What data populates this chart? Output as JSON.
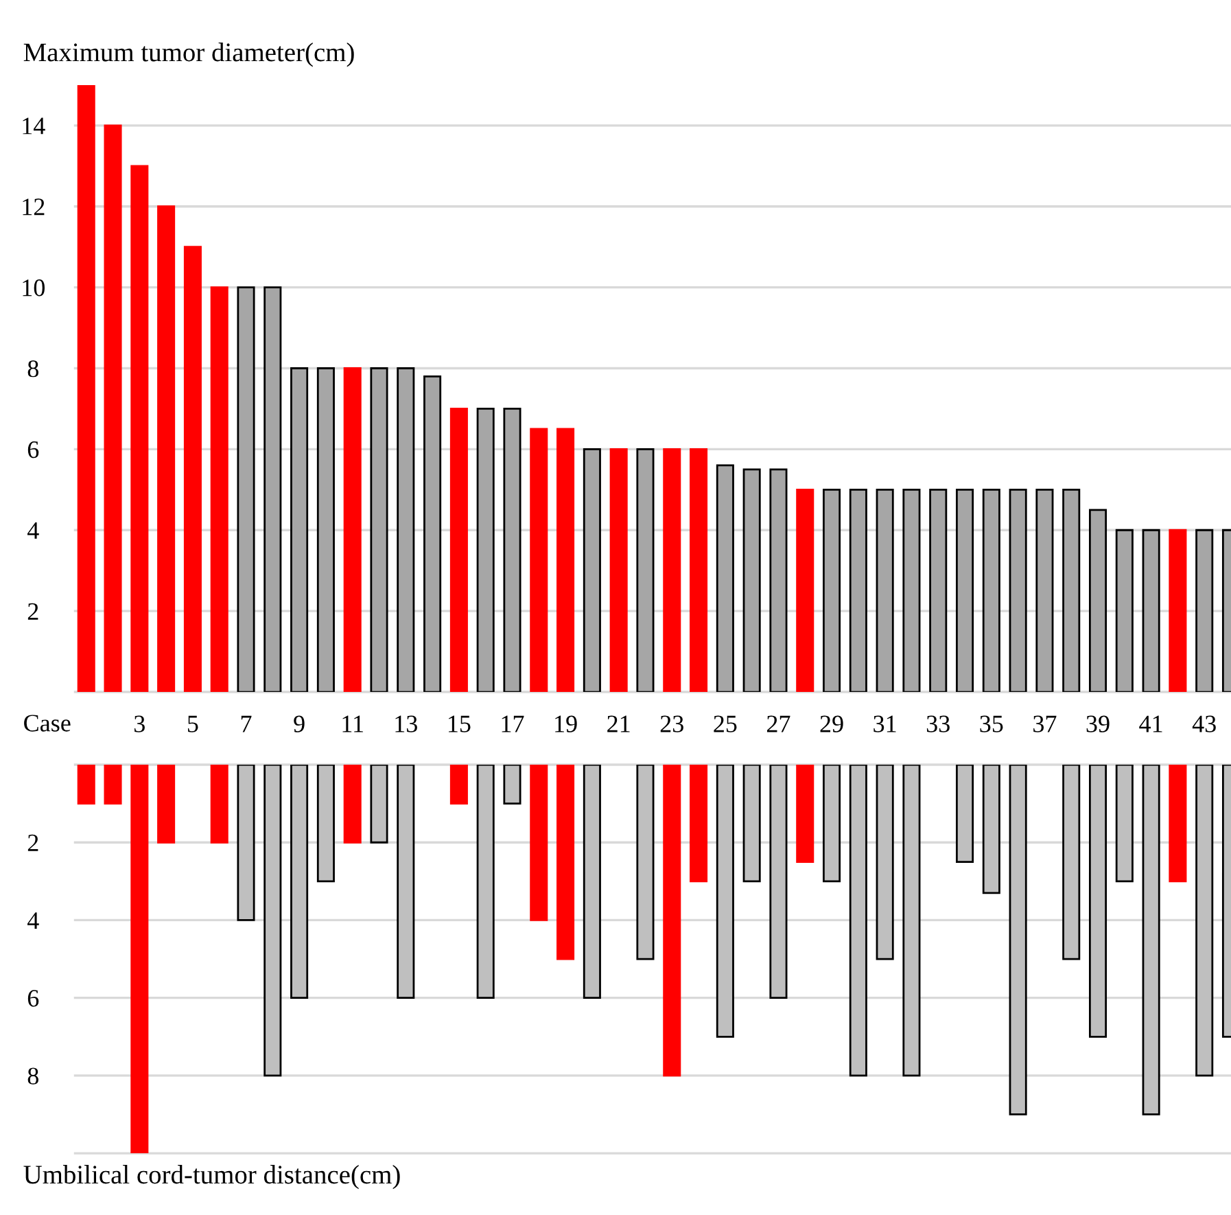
{
  "chart_data": [
    {
      "type": "bar",
      "ylabel": "Maximum tumor diameter(cm)",
      "xlabel": "Case",
      "categories": [
        null,
        null,
        "3",
        null,
        "5",
        null,
        "7",
        null,
        "9",
        null,
        "11",
        null,
        "13",
        null,
        "15",
        null,
        "17",
        null,
        "19",
        null,
        "21",
        null,
        "23",
        null,
        "25",
        null,
        "27",
        null,
        "29",
        null,
        "31",
        null,
        "33",
        null,
        "35",
        null,
        "37",
        null,
        "39",
        null,
        "41",
        null,
        "43",
        null
      ],
      "values": [
        15,
        14,
        13,
        12,
        11,
        10,
        10,
        10,
        8,
        8,
        8,
        8,
        8,
        7.8,
        7,
        7,
        7,
        6.5,
        6.5,
        6,
        6,
        6,
        6,
        6,
        5.6,
        5.5,
        5.5,
        5,
        5,
        5,
        5,
        5,
        5,
        5,
        5,
        5,
        5,
        5,
        4.5,
        4,
        4,
        4,
        4,
        4
      ],
      "colors": [
        "#ff0000",
        "#ff0000",
        "#ff0000",
        "#ff0000",
        "#ff0000",
        "#ff0000",
        "#a6a6a6",
        "#a6a6a6",
        "#a6a6a6",
        "#a6a6a6",
        "#ff0000",
        "#a6a6a6",
        "#a6a6a6",
        "#a6a6a6",
        "#ff0000",
        "#a6a6a6",
        "#a6a6a6",
        "#ff0000",
        "#ff0000",
        "#a6a6a6",
        "#ff0000",
        "#a6a6a6",
        "#ff0000",
        "#ff0000",
        "#a6a6a6",
        "#a6a6a6",
        "#a6a6a6",
        "#ff0000",
        "#a6a6a6",
        "#a6a6a6",
        "#a6a6a6",
        "#a6a6a6",
        "#a6a6a6",
        "#a6a6a6",
        "#a6a6a6",
        "#a6a6a6",
        "#a6a6a6",
        "#a6a6a6",
        "#a6a6a6",
        "#a6a6a6",
        "#a6a6a6",
        "#ff0000",
        "#a6a6a6",
        "#a6a6a6"
      ],
      "ylim": [
        0,
        15
      ],
      "yticks": [
        2,
        4,
        6,
        8,
        10,
        12,
        14
      ],
      "grid": "y"
    },
    {
      "type": "bar",
      "ylabel": "Umbilical cord-tumor distance(cm)",
      "categories": [
        null,
        null,
        "3",
        null,
        "5",
        null,
        "7",
        null,
        "9",
        null,
        "11",
        null,
        "13",
        null,
        "15",
        null,
        "17",
        null,
        "19",
        null,
        "21",
        null,
        "23",
        null,
        "25",
        null,
        "27",
        null,
        "29",
        null,
        "31",
        null,
        "33",
        null,
        "35",
        null,
        "37",
        null,
        "39",
        null,
        "41",
        null,
        "43",
        null
      ],
      "values": [
        1,
        1,
        10,
        2,
        null,
        2,
        4,
        8,
        6,
        3,
        2,
        2,
        6,
        null,
        1,
        6,
        1,
        4,
        5,
        6,
        null,
        5,
        8,
        3,
        7,
        3,
        6,
        2.5,
        3,
        8,
        5,
        8,
        null,
        2.5,
        3.3,
        9,
        null,
        5,
        7,
        3,
        9,
        3,
        8,
        7
      ],
      "colors": [
        "#ff0000",
        "#ff0000",
        "#ff0000",
        "#ff0000",
        "#ff0000",
        "#ff0000",
        "#bfbfbf",
        "#bfbfbf",
        "#bfbfbf",
        "#bfbfbf",
        "#ff0000",
        "#bfbfbf",
        "#bfbfbf",
        "#bfbfbf",
        "#ff0000",
        "#bfbfbf",
        "#bfbfbf",
        "#ff0000",
        "#ff0000",
        "#bfbfbf",
        "#ff0000",
        "#bfbfbf",
        "#ff0000",
        "#ff0000",
        "#bfbfbf",
        "#bfbfbf",
        "#bfbfbf",
        "#ff0000",
        "#bfbfbf",
        "#bfbfbf",
        "#bfbfbf",
        "#bfbfbf",
        "#bfbfbf",
        "#bfbfbf",
        "#bfbfbf",
        "#bfbfbf",
        "#bfbfbf",
        "#bfbfbf",
        "#bfbfbf",
        "#bfbfbf",
        "#bfbfbf",
        "#ff0000",
        "#bfbfbf",
        "#bfbfbf"
      ],
      "ylim": [
        10,
        0
      ],
      "yticks": [
        2,
        4,
        6,
        8
      ],
      "grid": "y",
      "tick_labels": "y"
    }
  ]
}
